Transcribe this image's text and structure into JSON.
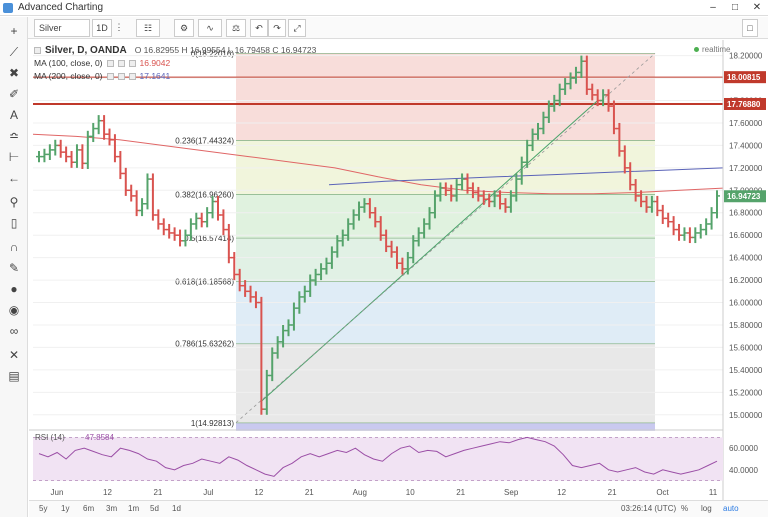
{
  "window": {
    "title": "Advanced Charting",
    "minimize": "–",
    "maximize": "□",
    "close": "✕"
  },
  "toolbar": {
    "symbol": "Silver",
    "interval": "1D"
  },
  "legend": {
    "title": "Silver, D, OANDA",
    "ohlc": "O 16.82955 H 16.99554 L 16.79458 C 16.94723",
    "ma100_label": "MA (100, close, 0)",
    "ma100_value": "16.9042",
    "ma200_label": "MA (200, close, 0)",
    "ma200_value": "17.1641"
  },
  "realtime": "realtime",
  "colors": {
    "up": "#55a36b",
    "down": "#d9534f",
    "ma100": "#e06666",
    "ma200": "#5a63b8",
    "rsi": "#9b4fa6",
    "hline": "#c0392b"
  },
  "chart_data": {
    "type": "line",
    "title": "",
    "price_axis": {
      "ticks": [
        "18.20000",
        "18.00000",
        "17.80000",
        "17.60000",
        "17.40000",
        "17.20000",
        "17.00000",
        "16.80000",
        "16.60000",
        "16.40000",
        "16.20000",
        "16.00000",
        "15.80000",
        "15.60000",
        "15.40000",
        "15.20000",
        "15.00000"
      ],
      "ylim": [
        14.9,
        18.25
      ]
    },
    "date_axis": {
      "ticks": [
        "Jun",
        "12",
        "21",
        "Jul",
        "12",
        "21",
        "Aug",
        "10",
        "21",
        "Sep",
        "12",
        "21",
        "Oct",
        "11"
      ]
    },
    "price_tags": [
      {
        "label": "18.00815",
        "value": 18.008
      },
      {
        "label": "17.76880",
        "value": 17.769
      },
      {
        "label": "16.94723",
        "value": 16.947
      }
    ],
    "fib_levels": [
      {
        "label": "0(18.22016)",
        "value": 18.22
      },
      {
        "label": "0.236(17.44324)",
        "value": 17.443
      },
      {
        "label": "0.382(16.96260)",
        "value": 16.963
      },
      {
        "label": "0.5(16.57414)",
        "value": 16.574
      },
      {
        "label": "0.618(16.18568)",
        "value": 16.186
      },
      {
        "label": "0.786(15.63262)",
        "value": 15.633
      },
      {
        "label": "1(14.92813)",
        "value": 14.928
      }
    ],
    "series": [
      {
        "values": [
          17.3,
          17.32,
          17.36,
          17.4,
          17.34,
          17.3,
          17.25,
          17.36,
          17.24,
          17.48,
          17.55,
          17.62,
          17.5,
          17.45,
          17.3,
          17.15,
          17.0,
          16.95,
          16.82,
          16.88,
          17.1,
          16.78,
          16.7,
          16.65,
          16.62,
          16.6,
          16.55,
          16.6,
          16.7,
          16.75,
          16.72,
          16.8,
          16.9,
          16.78,
          16.65,
          16.4,
          16.25,
          16.15,
          16.1,
          16.05,
          16.0,
          15.05,
          15.35,
          15.55,
          15.65,
          15.75,
          15.8,
          15.95,
          16.05,
          16.1,
          16.2,
          16.25,
          16.3,
          16.35,
          16.45,
          16.55,
          16.6,
          16.7,
          16.78,
          16.85,
          16.88,
          16.8,
          16.72,
          16.6,
          16.5,
          16.45,
          16.35,
          16.3,
          16.4,
          16.55,
          16.62,
          16.7,
          16.8,
          16.95,
          17.02,
          17.0,
          16.95,
          17.05,
          17.1,
          17.02,
          16.98,
          16.95,
          16.92,
          16.9,
          16.95,
          16.88,
          16.85,
          16.95,
          17.1,
          17.25,
          17.4,
          17.5,
          17.55,
          17.65,
          17.75,
          17.8,
          17.9,
          17.95,
          18.0,
          18.05,
          18.15,
          17.9,
          17.85,
          17.8,
          17.85,
          17.75,
          17.55,
          17.35,
          17.2,
          17.05,
          16.95,
          16.9,
          16.85,
          16.9,
          16.82,
          16.75,
          16.72,
          16.65,
          16.6,
          16.62,
          16.58,
          16.62,
          16.65,
          16.7,
          16.8,
          16.95
        ]
      }
    ],
    "ma100": [
      17.5,
      17.48,
      17.45,
      17.4,
      17.35,
      17.3,
      17.25,
      17.2,
      17.12,
      17.05,
      17.0,
      16.98,
      16.97,
      16.97,
      16.98,
      17.0,
      17.02
    ],
    "ma200": [
      17.05,
      17.08,
      17.1,
      17.12,
      17.14,
      17.16,
      17.18,
      17.2
    ],
    "rsi": {
      "label": "RSI (14)",
      "value": "47.8584",
      "ticks": [
        "60.0000",
        "40.0000"
      ],
      "ylim": [
        25,
        75
      ],
      "values": [
        55,
        52,
        56,
        50,
        58,
        60,
        57,
        54,
        52,
        60,
        58,
        55,
        50,
        48,
        42,
        40,
        44,
        46,
        50,
        48,
        46,
        52,
        49,
        44,
        40,
        36,
        34,
        42,
        46,
        52,
        55,
        52,
        55,
        58,
        56,
        60,
        54,
        50,
        48,
        55,
        60,
        62,
        56,
        58,
        57,
        52,
        55,
        58,
        60,
        62,
        64,
        66,
        65,
        68,
        70,
        68,
        66,
        62,
        54,
        44,
        42,
        44,
        46,
        40,
        38,
        40,
        42,
        38,
        36,
        40,
        38,
        36,
        38,
        40,
        44,
        48
      ]
    }
  },
  "bottombar": {
    "ranges": [
      "5y",
      "1y",
      "6m",
      "3m",
      "1m",
      "5d",
      "1d"
    ],
    "time": "03:26:14 (UTC)",
    "percent": "%",
    "log": "log",
    "auto": "auto"
  }
}
